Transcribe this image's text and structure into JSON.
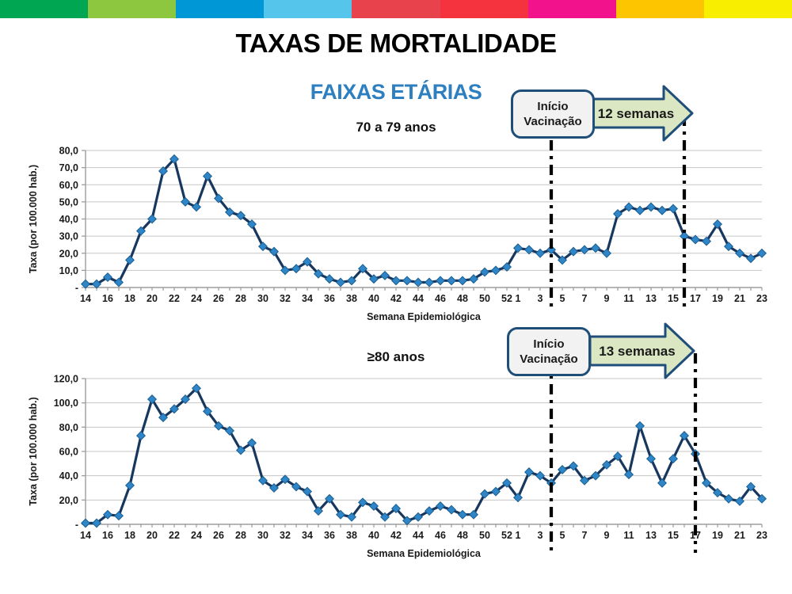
{
  "banner_colors": [
    "#00a651",
    "#8dc63f",
    "#0097d7",
    "#56c5ec",
    "#e8424d",
    "#f5333f",
    "#f2138c",
    "#fdc500",
    "#f7ee00"
  ],
  "title": "TAXAS DE MORTALIDADE",
  "subtitle": "FAIXAS ETÁRIAS",
  "colors": {
    "series_line": "#17375e",
    "marker_fill": "#2e86c8",
    "marker_stroke": "#1c5e8f",
    "gridline": "#c6c6c6",
    "axis_line": "#9d9d9d",
    "tick_label": "#1a1a1a",
    "subtitle_blue": "#2e7fbf",
    "callout_border": "#1f4e79",
    "callout_fill": "#f2f2f2",
    "arrow_fill": "#dbe6c3",
    "divider_line": "#000000"
  },
  "chart_data": [
    {
      "type": "line",
      "title": "70 a 79 anos",
      "xlabel": "Semana Epidemiológica",
      "ylabel": "Taxa (por 100.000 hab.)",
      "ylim": [
        0,
        80
      ],
      "ytick_step": 10,
      "ytick_labels_bottom_up": [
        "-",
        "10,0",
        "20,0",
        "30,0",
        "40,0",
        "50,0",
        "60,0",
        "70,0",
        "80,0"
      ],
      "grid": true,
      "legend": false,
      "x_categories": [
        "14",
        "15",
        "16",
        "17",
        "18",
        "19",
        "20",
        "21",
        "22",
        "23",
        "24",
        "25",
        "26",
        "27",
        "28",
        "29",
        "30",
        "31",
        "32",
        "33",
        "34",
        "35",
        "36",
        "37",
        "38",
        "39",
        "40",
        "41",
        "42",
        "43",
        "44",
        "45",
        "46",
        "47",
        "48",
        "49",
        "50",
        "51",
        "52",
        "1",
        "2",
        "3",
        "4",
        "5",
        "6",
        "7",
        "8",
        "9",
        "10",
        "11",
        "12",
        "13",
        "14",
        "15",
        "16",
        "17",
        "18",
        "19",
        "20",
        "21",
        "22",
        "23"
      ],
      "values": [
        2,
        2,
        6,
        3,
        16,
        33,
        40,
        68,
        75,
        50,
        47,
        65,
        52,
        44,
        42,
        37,
        24,
        21,
        10,
        11,
        15,
        8,
        5,
        3,
        4,
        11,
        5,
        7,
        4,
        4,
        3,
        3,
        4,
        4,
        4,
        5,
        9,
        10,
        12,
        23,
        22,
        20,
        22,
        16,
        21,
        22,
        23,
        20,
        43,
        47,
        45,
        47,
        45,
        46,
        30,
        28,
        27,
        37,
        24,
        20,
        17,
        20
      ],
      "annotations": {
        "box_line1": "Início",
        "box_line2": "Vacinação",
        "arrow_label": "12 semanas",
        "vaccination_start_index": 42,
        "vaccination_end_index": 54
      }
    },
    {
      "type": "line",
      "title": "≥80 anos",
      "xlabel": "Semana Epidemiológica",
      "ylabel": "Taxa (por 100.000 hab.)",
      "ylim": [
        0,
        120
      ],
      "ytick_step": 20,
      "ytick_labels_bottom_up": [
        "-",
        "20,0",
        "40,0",
        "60,0",
        "80,0",
        "100,0",
        "120,0"
      ],
      "grid": true,
      "legend": false,
      "x_categories": [
        "14",
        "15",
        "16",
        "17",
        "18",
        "19",
        "20",
        "21",
        "22",
        "23",
        "24",
        "25",
        "26",
        "27",
        "28",
        "29",
        "30",
        "31",
        "32",
        "33",
        "34",
        "35",
        "36",
        "37",
        "38",
        "39",
        "40",
        "41",
        "42",
        "43",
        "44",
        "45",
        "46",
        "47",
        "48",
        "49",
        "50",
        "51",
        "52",
        "1",
        "2",
        "3",
        "4",
        "5",
        "6",
        "7",
        "8",
        "9",
        "10",
        "11",
        "12",
        "13",
        "14",
        "15",
        "16",
        "17",
        "18",
        "19",
        "20",
        "21",
        "22",
        "23"
      ],
      "values": [
        1,
        1,
        8,
        7,
        32,
        73,
        103,
        88,
        95,
        103,
        112,
        93,
        81,
        77,
        61,
        67,
        36,
        30,
        37,
        31,
        27,
        11,
        21,
        8,
        6,
        18,
        15,
        6,
        13,
        3,
        6,
        11,
        15,
        12,
        8,
        8,
        25,
        27,
        34,
        22,
        43,
        40,
        34,
        45,
        48,
        36,
        40,
        49,
        56,
        41,
        81,
        54,
        34,
        54,
        73,
        58,
        34,
        26,
        21,
        19,
        31,
        21
      ],
      "annotations": {
        "box_line1": "Início",
        "box_line2": "Vacinação",
        "arrow_label": "13 semanas",
        "vaccination_start_index": 42,
        "vaccination_end_index": 55
      }
    }
  ]
}
